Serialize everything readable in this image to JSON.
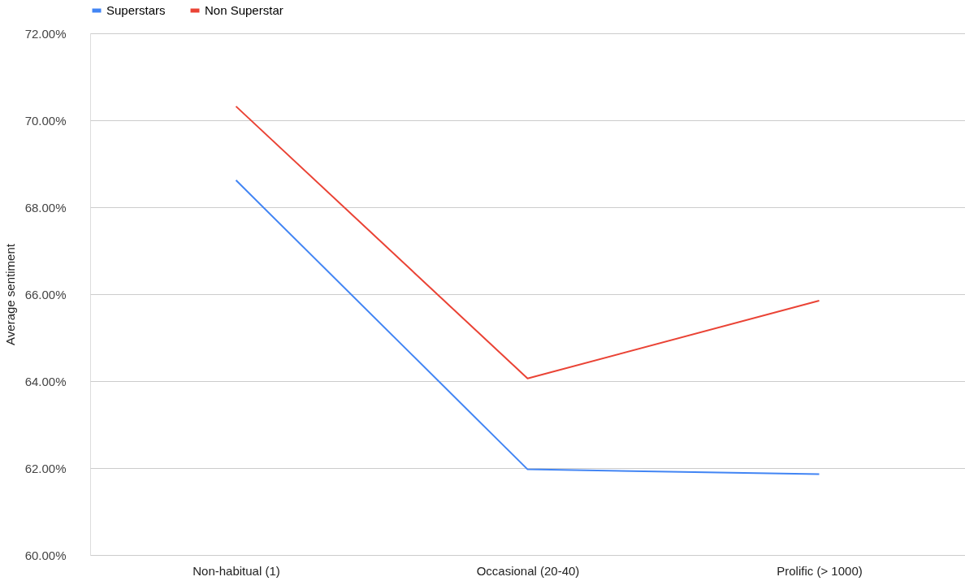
{
  "chart_data": {
    "type": "line",
    "ylabel": "Average sentiment",
    "categories": [
      "Non-habitual (1)",
      "Occasional (20-40)",
      "Prolific (> 1000)"
    ],
    "series": [
      {
        "name": "Superstars",
        "color": "#4285f4",
        "values": [
          68.62,
          61.97,
          61.86
        ]
      },
      {
        "name": "Non Superstar",
        "color": "#ea4335",
        "values": [
          70.32,
          64.06,
          65.85
        ]
      }
    ],
    "ylim": [
      60,
      72
    ],
    "yticks": [
      {
        "value": 60,
        "label": "60.00%"
      },
      {
        "value": 62,
        "label": "62.00%"
      },
      {
        "value": 64,
        "label": "64.00%"
      },
      {
        "value": 66,
        "label": "66.00%"
      },
      {
        "value": 68,
        "label": "68.00%"
      },
      {
        "value": 70,
        "label": "70.00%"
      },
      {
        "value": 72,
        "label": "72.00%"
      }
    ],
    "grid": "y",
    "legend": "top",
    "marker": "none",
    "line_style": "solid"
  }
}
